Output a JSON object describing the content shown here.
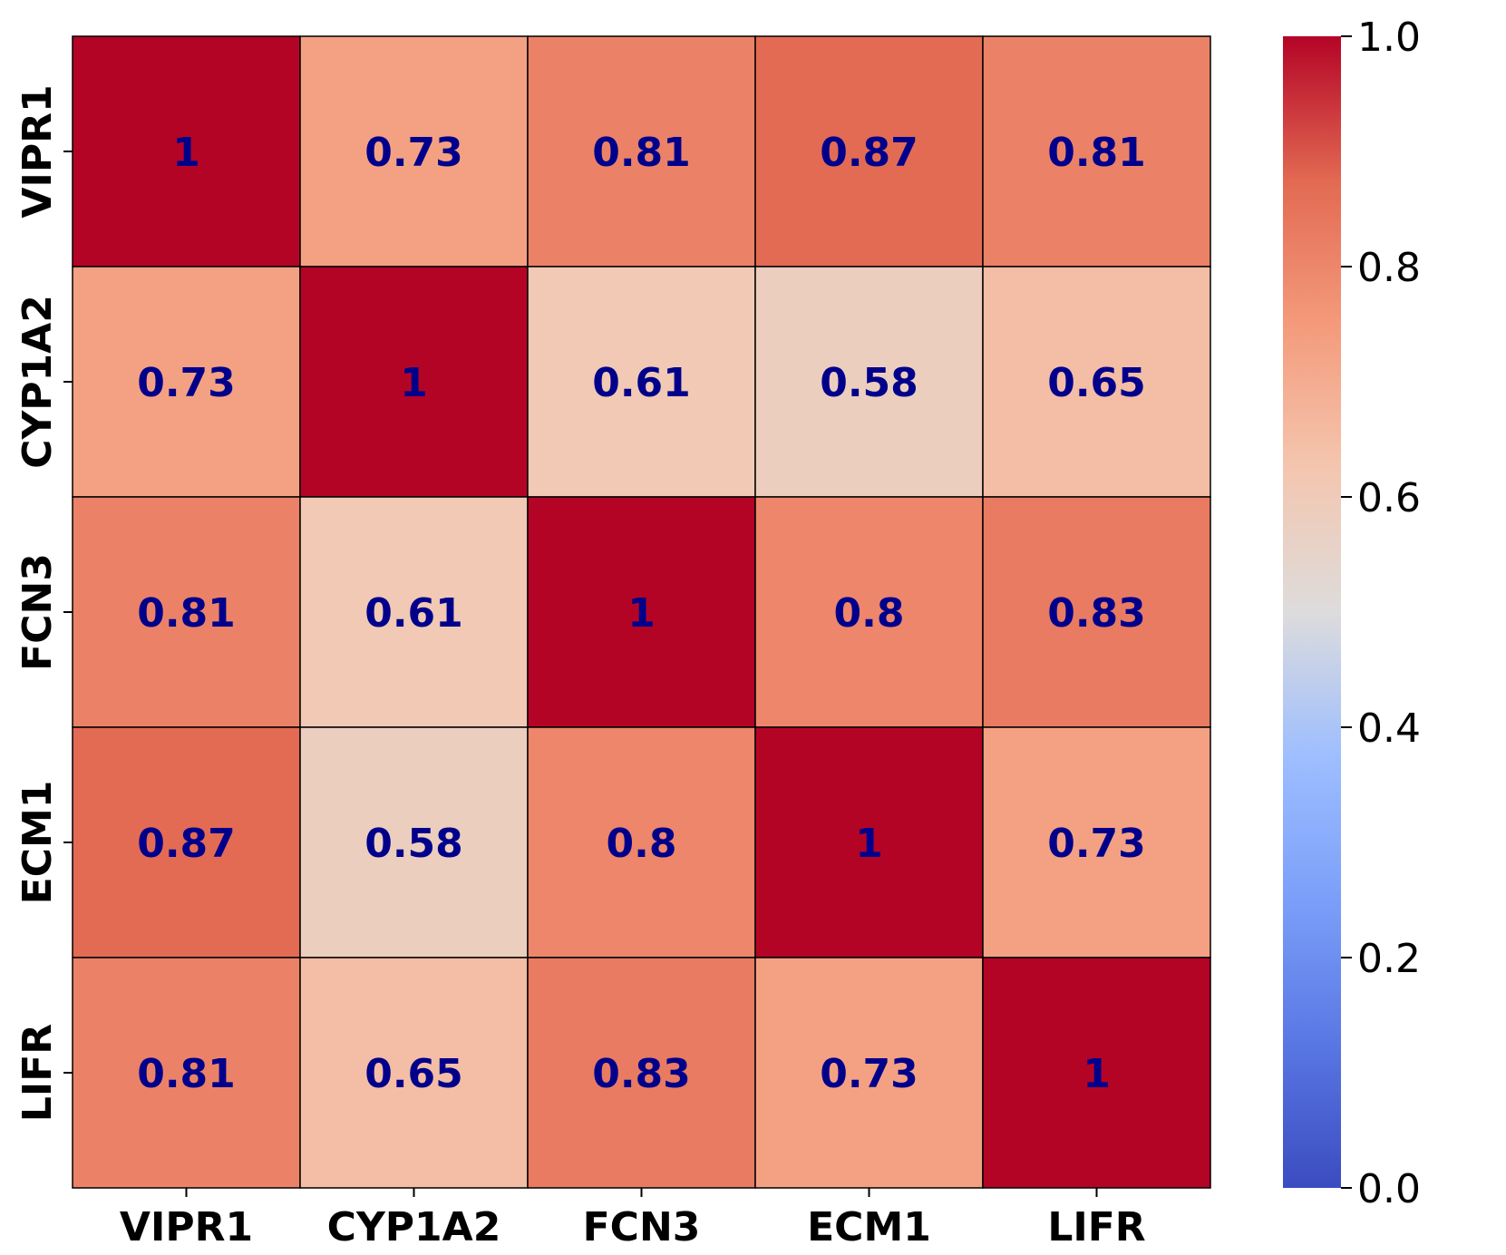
{
  "chart_data": {
    "type": "heatmap",
    "title": "",
    "xlabel": "",
    "ylabel": "",
    "x_categories": [
      "VIPR1",
      "CYP1A2",
      "FCN3",
      "ECM1",
      "LIFR"
    ],
    "y_categories": [
      "VIPR1",
      "CYP1A2",
      "FCN3",
      "ECM1",
      "LIFR"
    ],
    "values": [
      [
        1,
        0.73,
        0.81,
        0.87,
        0.81
      ],
      [
        0.73,
        1,
        0.61,
        0.58,
        0.65
      ],
      [
        0.81,
        0.61,
        1,
        0.8,
        0.83
      ],
      [
        0.87,
        0.58,
        0.8,
        1,
        0.73
      ],
      [
        0.81,
        0.65,
        0.83,
        0.73,
        1
      ]
    ],
    "cell_labels": [
      [
        "1",
        "0.73",
        "0.81",
        "0.87",
        "0.81"
      ],
      [
        "0.73",
        "1",
        "0.61",
        "0.58",
        "0.65"
      ],
      [
        "0.81",
        "0.61",
        "1",
        "0.8",
        "0.83"
      ],
      [
        "0.87",
        "0.58",
        "0.8",
        "1",
        "0.73"
      ],
      [
        "0.81",
        "0.65",
        "0.83",
        "0.73",
        "1"
      ]
    ],
    "colormap": "coolwarm",
    "colorbar": {
      "vmin": 0.0,
      "vmax": 1.0,
      "ticks": [
        0.0,
        0.2,
        0.4,
        0.6,
        0.8,
        1.0
      ],
      "tick_labels": [
        "0.0",
        "0.2",
        "0.4",
        "0.6",
        "0.8",
        "1.0"
      ],
      "position": "right"
    },
    "annotation_color": "#00008b",
    "cell_border_color": "#000000",
    "grid": false
  }
}
